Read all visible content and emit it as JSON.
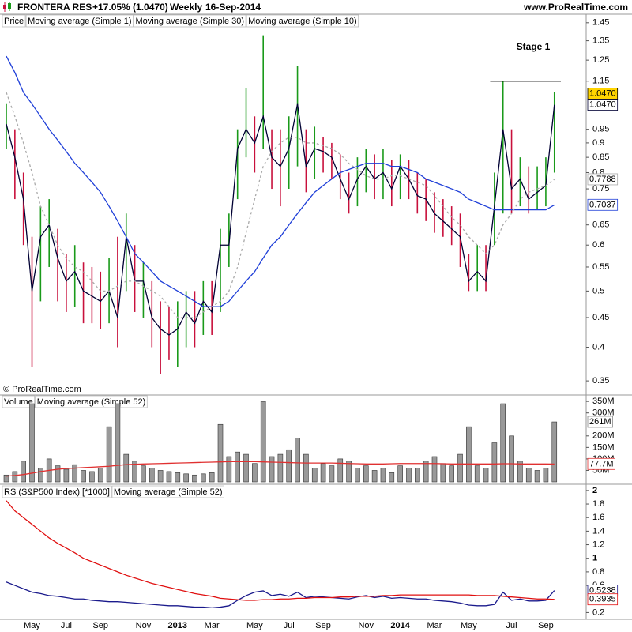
{
  "header": {
    "symbol": "FRONTERA RES",
    "change": "+17.05% (1.0470)",
    "period": "Weekly",
    "date": "16-Sep-2014",
    "site": "www.ProRealTime.com"
  },
  "copyright": "© ProRealTime.com",
  "chart_data": [
    {
      "type": "range",
      "log_scale": true,
      "ylim": [
        0.333,
        1.5
      ],
      "yticks": [
        0.35,
        0.4,
        0.45,
        0.5,
        0.55,
        0.6,
        0.65,
        0.75,
        0.8,
        0.85,
        0.9,
        0.95,
        1.15,
        1.25,
        1.35,
        1.45
      ],
      "annotation": "Stage 1",
      "level_line": 1.15,
      "bars": {
        "name": "Price",
        "up_color": "#1a9a1a",
        "down_color": "#c8103c",
        "last_label": "1.0470",
        "high": [
          1.05,
          0.95,
          0.8,
          0.62,
          0.7,
          0.72,
          0.64,
          0.58,
          0.6,
          0.56,
          0.55,
          0.54,
          0.57,
          0.62,
          0.68,
          0.6,
          0.56,
          0.52,
          0.48,
          0.47,
          0.48,
          0.5,
          0.5,
          0.52,
          0.52,
          0.64,
          0.68,
          0.95,
          1.12,
          1.0,
          1.38,
          0.95,
          0.95,
          1.0,
          1.22,
          0.95,
          0.96,
          0.92,
          0.9,
          0.86,
          0.8,
          0.85,
          0.88,
          0.86,
          0.88,
          0.84,
          0.86,
          0.84,
          0.8,
          0.78,
          0.74,
          0.72,
          0.7,
          0.68,
          0.58,
          0.6,
          0.6,
          0.8,
          1.15,
          0.95,
          0.85,
          0.82,
          0.82,
          0.85,
          1.1
        ],
        "low": [
          0.88,
          0.72,
          0.6,
          0.37,
          0.48,
          0.55,
          0.48,
          0.46,
          0.47,
          0.44,
          0.44,
          0.43,
          0.44,
          0.4,
          0.5,
          0.46,
          0.45,
          0.4,
          0.36,
          0.38,
          0.37,
          0.4,
          0.4,
          0.42,
          0.42,
          0.46,
          0.55,
          0.72,
          0.85,
          0.8,
          0.88,
          0.75,
          0.7,
          0.75,
          0.82,
          0.74,
          0.78,
          0.8,
          0.78,
          0.72,
          0.68,
          0.7,
          0.74,
          0.72,
          0.72,
          0.7,
          0.72,
          0.72,
          0.68,
          0.66,
          0.63,
          0.62,
          0.6,
          0.55,
          0.5,
          0.5,
          0.5,
          0.6,
          0.68,
          0.68,
          0.7,
          0.68,
          0.69,
          0.7,
          0.8
        ]
      },
      "series": [
        {
          "name": "Moving average (Simple 1)",
          "color": "#000033",
          "last_label": "1.0470",
          "values": [
            0.97,
            0.85,
            0.72,
            0.5,
            0.62,
            0.65,
            0.57,
            0.52,
            0.54,
            0.5,
            0.49,
            0.48,
            0.5,
            0.45,
            0.62,
            0.52,
            0.52,
            0.45,
            0.43,
            0.42,
            0.43,
            0.46,
            0.44,
            0.48,
            0.46,
            0.6,
            0.6,
            0.88,
            0.95,
            0.9,
            1.0,
            0.85,
            0.82,
            0.88,
            1.05,
            0.82,
            0.88,
            0.87,
            0.85,
            0.78,
            0.72,
            0.78,
            0.82,
            0.78,
            0.8,
            0.75,
            0.82,
            0.78,
            0.73,
            0.72,
            0.68,
            0.66,
            0.64,
            0.62,
            0.52,
            0.54,
            0.52,
            0.7,
            0.95,
            0.75,
            0.78,
            0.72,
            0.74,
            0.76,
            1.047
          ]
        },
        {
          "name": "Moving average (Simple 30)",
          "color": "#1f3fd8",
          "last_label": "0.7037",
          "values": [
            1.27,
            1.19,
            1.1,
            1.05,
            1.0,
            0.95,
            0.91,
            0.87,
            0.83,
            0.8,
            0.77,
            0.74,
            0.7,
            0.66,
            0.62,
            0.58,
            0.56,
            0.54,
            0.52,
            0.51,
            0.5,
            0.49,
            0.48,
            0.47,
            0.47,
            0.47,
            0.48,
            0.5,
            0.52,
            0.54,
            0.57,
            0.6,
            0.62,
            0.65,
            0.68,
            0.71,
            0.74,
            0.76,
            0.78,
            0.8,
            0.81,
            0.82,
            0.83,
            0.83,
            0.83,
            0.82,
            0.82,
            0.81,
            0.8,
            0.78,
            0.77,
            0.76,
            0.75,
            0.74,
            0.72,
            0.71,
            0.7,
            0.69,
            0.69,
            0.69,
            0.69,
            0.69,
            0.69,
            0.69,
            0.7037
          ]
        },
        {
          "name": "Moving average (Simple 10)",
          "color": "#aaaaaa",
          "dash": true,
          "last_label": "0.7788",
          "values": [
            1.1,
            1.0,
            0.9,
            0.8,
            0.7,
            0.65,
            0.6,
            0.57,
            0.55,
            0.54,
            0.52,
            0.5,
            0.5,
            0.51,
            0.52,
            0.52,
            0.51,
            0.5,
            0.49,
            0.47,
            0.45,
            0.45,
            0.45,
            0.46,
            0.47,
            0.48,
            0.5,
            0.55,
            0.63,
            0.72,
            0.82,
            0.87,
            0.9,
            0.92,
            0.92,
            0.9,
            0.9,
            0.89,
            0.88,
            0.86,
            0.83,
            0.81,
            0.79,
            0.78,
            0.78,
            0.79,
            0.79,
            0.78,
            0.77,
            0.76,
            0.73,
            0.7,
            0.67,
            0.65,
            0.62,
            0.6,
            0.58,
            0.6,
            0.65,
            0.68,
            0.72,
            0.74,
            0.75,
            0.76,
            0.7788
          ]
        }
      ]
    },
    {
      "type": "bar",
      "ylim": [
        0,
        378
      ],
      "yticks": [
        {
          "value": 50,
          "label": "50M"
        },
        {
          "value": 100,
          "label": "100M"
        },
        {
          "value": 150,
          "label": "150M"
        },
        {
          "value": 200,
          "label": "200M"
        },
        {
          "value": 300,
          "label": "300M"
        },
        {
          "value": 350,
          "label": "350M"
        }
      ],
      "series": [
        {
          "name": "Volume",
          "color": "#999999",
          "last_label": "261M",
          "values": [
            30,
            45,
            90,
            340,
            60,
            100,
            70,
            55,
            75,
            50,
            45,
            60,
            240,
            340,
            120,
            90,
            70,
            60,
            50,
            45,
            40,
            35,
            30,
            35,
            40,
            250,
            110,
            130,
            120,
            80,
            350,
            110,
            120,
            140,
            190,
            120,
            60,
            80,
            70,
            100,
            90,
            60,
            70,
            50,
            60,
            40,
            70,
            60,
            60,
            90,
            110,
            80,
            70,
            120,
            240,
            70,
            60,
            170,
            340,
            200,
            90,
            60,
            50,
            60,
            261
          ]
        },
        {
          "name": "Moving average (Simple 52)",
          "color": "#e03030",
          "last_label": "77.7M",
          "values": [
            25,
            28,
            32,
            38,
            45,
            50,
            55,
            58,
            60,
            62,
            64,
            66,
            68,
            72,
            75,
            77,
            78,
            79,
            80,
            81,
            82,
            83,
            84,
            85,
            86,
            87,
            88,
            88,
            88,
            88,
            87,
            86,
            85,
            84,
            83,
            82,
            82,
            82,
            82,
            81,
            80,
            79,
            78,
            78,
            78,
            79,
            80,
            80,
            80,
            80,
            80,
            79,
            78,
            78,
            78,
            78,
            78,
            78,
            79,
            79,
            78,
            78,
            78,
            78,
            77.7
          ]
        }
      ]
    },
    {
      "type": "line",
      "ylim": [
        0.1,
        2.08
      ],
      "yticks": [
        0.2,
        0.6,
        0.8,
        1,
        1.2,
        1.4,
        1.6,
        1.8,
        2
      ],
      "categories": [
        null,
        null,
        null,
        "May",
        null,
        null,
        null,
        "Jul",
        null,
        null,
        null,
        "Sep",
        null,
        null,
        null,
        null,
        "Nov",
        null,
        null,
        null,
        "2013",
        null,
        null,
        null,
        "Mar",
        null,
        null,
        null,
        null,
        "May",
        null,
        null,
        null,
        "Jul",
        null,
        null,
        null,
        "Sep",
        null,
        null,
        null,
        null,
        "Nov",
        null,
        null,
        null,
        "2014",
        null,
        null,
        null,
        "Mar",
        null,
        null,
        null,
        "May",
        null,
        null,
        null,
        null,
        "Jul",
        null,
        null,
        null,
        "Sep",
        null
      ],
      "series": [
        {
          "name": "RS (S&P500 Index) [*1000]",
          "color": "#1a1a8c",
          "last_label": "0.5238",
          "values": [
            0.65,
            0.6,
            0.55,
            0.5,
            0.48,
            0.45,
            0.44,
            0.42,
            0.4,
            0.4,
            0.38,
            0.37,
            0.36,
            0.36,
            0.35,
            0.34,
            0.33,
            0.32,
            0.31,
            0.3,
            0.3,
            0.29,
            0.28,
            0.28,
            0.27,
            0.28,
            0.3,
            0.38,
            0.45,
            0.5,
            0.52,
            0.45,
            0.47,
            0.44,
            0.5,
            0.42,
            0.44,
            0.43,
            0.42,
            0.41,
            0.4,
            0.43,
            0.45,
            0.42,
            0.44,
            0.41,
            0.42,
            0.41,
            0.4,
            0.4,
            0.38,
            0.37,
            0.36,
            0.34,
            0.31,
            0.3,
            0.3,
            0.32,
            0.5,
            0.38,
            0.4,
            0.37,
            0.37,
            0.38,
            0.5238
          ]
        },
        {
          "name": "Moving average (Simple 52)",
          "color": "#e01010",
          "last_label": "0.3935",
          "values": [
            1.85,
            1.7,
            1.6,
            1.5,
            1.4,
            1.3,
            1.22,
            1.15,
            1.08,
            1.0,
            0.95,
            0.9,
            0.85,
            0.8,
            0.75,
            0.71,
            0.67,
            0.63,
            0.6,
            0.57,
            0.54,
            0.51,
            0.48,
            0.46,
            0.44,
            0.41,
            0.4,
            0.39,
            0.38,
            0.38,
            0.39,
            0.39,
            0.4,
            0.4,
            0.41,
            0.41,
            0.42,
            0.42,
            0.42,
            0.43,
            0.43,
            0.44,
            0.44,
            0.44,
            0.45,
            0.45,
            0.46,
            0.46,
            0.46,
            0.46,
            0.46,
            0.46,
            0.46,
            0.46,
            0.46,
            0.45,
            0.45,
            0.45,
            0.44,
            0.43,
            0.42,
            0.41,
            0.4,
            0.4,
            0.3935
          ]
        }
      ]
    }
  ]
}
